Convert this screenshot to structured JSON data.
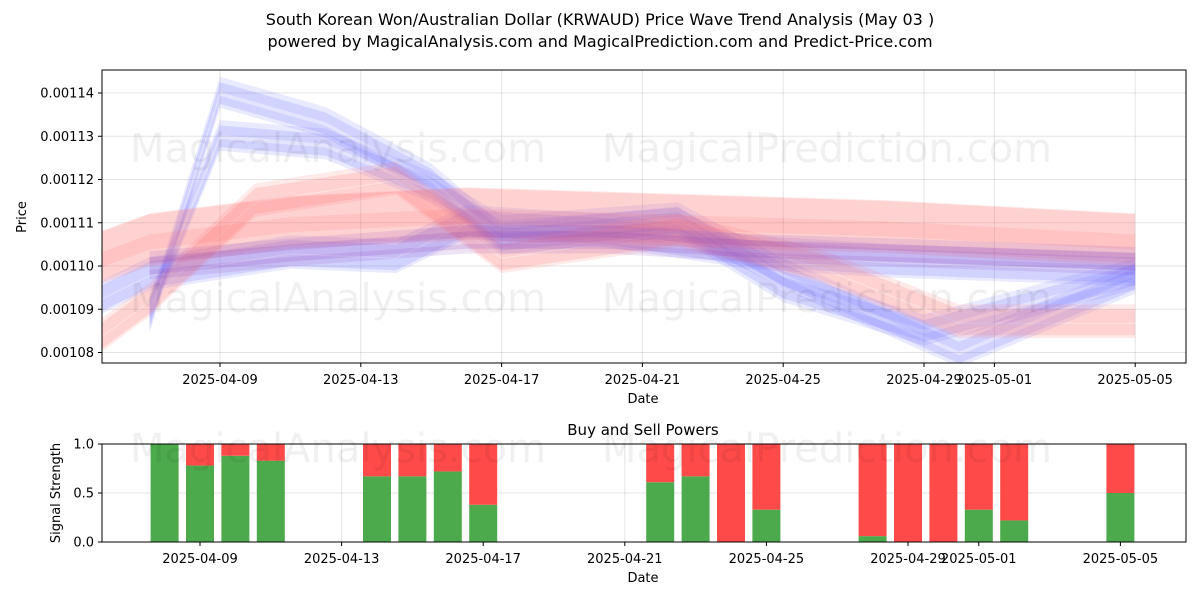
{
  "title": "South Korean Won/Australian Dollar (KRWAUD) Price Wave Trend Analysis (May 03 )",
  "subtitle": "powered by MagicalAnalysis.com and MagicalPrediction.com and Predict-Price.com",
  "watermarks": [
    "MagicalAnalysis.com",
    "MagicalPrediction.com"
  ],
  "colors": {
    "buy": "#4caa4c",
    "sell": "#ff4a4a",
    "wave_blue": "#6b6bff",
    "wave_red": "#ff6b6b",
    "wave_purple": "#8a3fb5"
  },
  "chart_data": [
    {
      "type": "area",
      "xlabel": "Date",
      "ylabel": "Price",
      "ylim": [
        0.001078,
        0.001155
      ],
      "xlim": [
        "2025-04-05",
        "2025-05-06"
      ],
      "yticks": [
        "0.00108",
        "0.00109",
        "0.00110",
        "0.00111",
        "0.00112",
        "0.00113",
        "0.00114"
      ],
      "xticks": [
        "2025-04-09",
        "2025-04-13",
        "2025-04-17",
        "2025-04-21",
        "2025-04-25",
        "2025-04-29",
        "2025-05-01",
        "2025-05-05"
      ],
      "grid": true,
      "series": [
        {
          "color": "blue",
          "x": [
            "2025-04-05",
            "2025-04-07",
            "2025-04-11",
            "2025-04-14",
            "2025-04-16",
            "2025-04-20",
            "2025-04-24",
            "2025-04-28",
            "2025-05-05"
          ],
          "center": [
            0.00109,
            0.001098,
            0.001103,
            0.001102,
            0.00111,
            0.001108,
            0.001103,
            0.001101,
            0.001099
          ],
          "width": 6e-06
        },
        {
          "color": "blue",
          "x": [
            "2025-04-07",
            "2025-04-09",
            "2025-04-12",
            "2025-04-15",
            "2025-04-17",
            "2025-04-22",
            "2025-04-25",
            "2025-04-29",
            "2025-05-05"
          ],
          "center": [
            0.001088,
            0.00114,
            0.001133,
            0.00112,
            0.001106,
            0.00111,
            0.001095,
            0.001085,
            0.001098
          ],
          "width": 5e-06
        },
        {
          "color": "blue",
          "x": [
            "2025-04-07",
            "2025-04-09",
            "2025-04-12",
            "2025-04-15",
            "2025-04-17",
            "2025-04-22",
            "2025-04-25",
            "2025-04-30",
            "2025-05-05"
          ],
          "center": [
            0.00109,
            0.00113,
            0.001128,
            0.001118,
            0.001108,
            0.001111,
            0.001098,
            0.00108,
            0.001097
          ],
          "width": 5e-06
        },
        {
          "color": "red",
          "x": [
            "2025-04-05",
            "2025-04-07",
            "2025-04-11",
            "2025-04-16",
            "2025-04-20",
            "2025-04-24",
            "2025-04-28",
            "2025-05-05"
          ],
          "center": [
            0.0011,
            0.001106,
            0.00111,
            0.001112,
            0.001111,
            0.00111,
            0.001109,
            0.001106
          ],
          "width": 1.2e-05
        },
        {
          "color": "red",
          "x": [
            "2025-04-05",
            "2025-04-07",
            "2025-04-10",
            "2025-04-14",
            "2025-04-17",
            "2025-04-22",
            "2025-04-26",
            "2025-04-30",
            "2025-05-05"
          ],
          "center": [
            0.00108,
            0.001092,
            0.001115,
            0.00112,
            0.001102,
            0.001108,
            0.0011,
            0.001087,
            0.001087
          ],
          "width": 6e-06
        },
        {
          "color": "purple",
          "x": [
            "2025-04-07",
            "2025-04-11",
            "2025-04-16",
            "2025-04-20",
            "2025-04-24",
            "2025-04-28",
            "2025-05-05"
          ],
          "center": [
            0.0011,
            0.001103,
            0.001106,
            0.001106,
            0.001104,
            0.001103,
            0.001101
          ],
          "width": 4e-06
        }
      ]
    },
    {
      "type": "bar",
      "title": "Buy and Sell Powers",
      "xlabel": "Date",
      "ylabel": "Signal Strength",
      "ylim": [
        0,
        1
      ],
      "yticks": [
        "0.0",
        "0.5",
        "1.0"
      ],
      "xticks": [
        "2025-04-09",
        "2025-04-13",
        "2025-04-17",
        "2025-04-21",
        "2025-04-25",
        "2025-04-29",
        "2025-05-01",
        "2025-05-05"
      ],
      "grid": true,
      "categories": [
        "2025-04-08",
        "2025-04-09",
        "2025-04-10",
        "2025-04-11",
        "2025-04-14",
        "2025-04-15",
        "2025-04-16",
        "2025-04-17",
        "2025-04-22",
        "2025-04-23",
        "2025-04-24",
        "2025-04-25",
        "2025-04-28",
        "2025-04-29",
        "2025-04-30",
        "2025-05-01",
        "2025-05-02",
        "2025-05-05"
      ],
      "buy": [
        1.0,
        0.78,
        0.88,
        0.83,
        0.67,
        0.67,
        0.72,
        0.38,
        0.61,
        0.67,
        0.0,
        0.33,
        0.06,
        0.0,
        0.0,
        0.33,
        0.22,
        0.5
      ],
      "sell": [
        0.0,
        0.22,
        0.12,
        0.17,
        0.33,
        0.33,
        0.28,
        0.62,
        0.39,
        0.33,
        1.0,
        0.67,
        0.94,
        1.0,
        1.0,
        0.67,
        0.78,
        0.5
      ]
    }
  ]
}
